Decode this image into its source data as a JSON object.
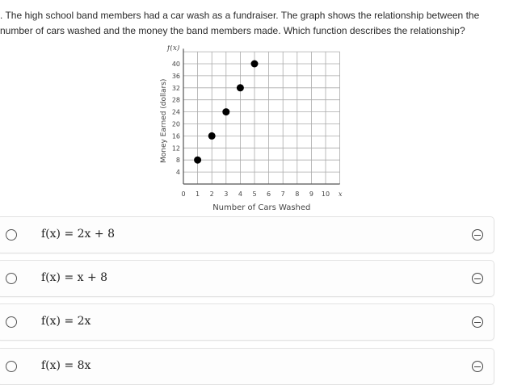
{
  "question": {
    "line1": ". The high school band members had a car wash as a fundraiser. The graph shows the relationship between the",
    "line2": " number of cars washed and the money the band members made. Which function describes the relationship?"
  },
  "chart_data": {
    "type": "scatter",
    "xlabel": "Number of Cars Washed",
    "ylabel": "Money Earned (dollars)",
    "x_axis_name": "x",
    "y_axis_name": "f(x)",
    "xlim": [
      0,
      10
    ],
    "ylim": [
      0,
      40
    ],
    "x_ticks": [
      "0",
      "1",
      "2",
      "3",
      "4",
      "5",
      "6",
      "7",
      "8",
      "9",
      "10"
    ],
    "y_ticks": [
      "4",
      "8",
      "12",
      "16",
      "20",
      "24",
      "28",
      "32",
      "36",
      "40"
    ],
    "grid": true,
    "points": [
      {
        "x": 1,
        "y": 8
      },
      {
        "x": 2,
        "y": 16
      },
      {
        "x": 3,
        "y": 24
      },
      {
        "x": 4,
        "y": 32
      },
      {
        "x": 5,
        "y": 40
      }
    ]
  },
  "options": [
    {
      "label": "f(x) = 2x + 8"
    },
    {
      "label": "f(x) = x + 8"
    },
    {
      "label": "f(x) = 2x"
    },
    {
      "label": "f(x) = 8x"
    }
  ]
}
